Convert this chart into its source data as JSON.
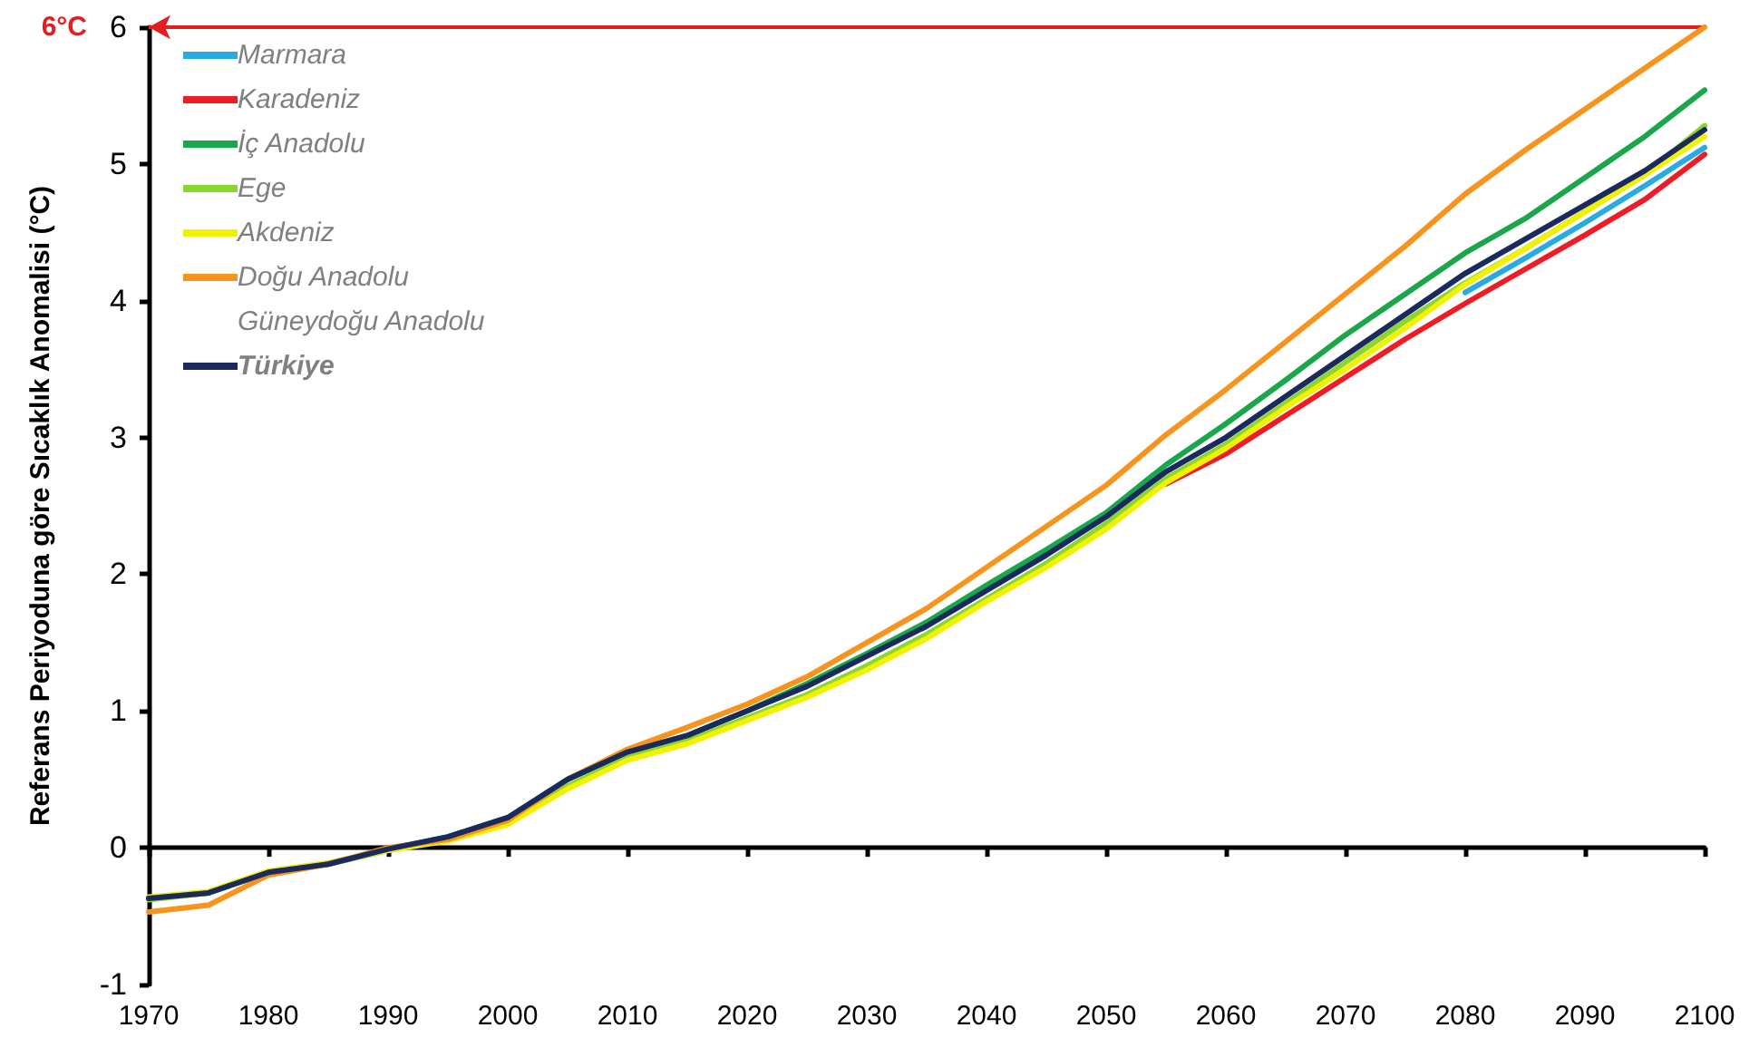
{
  "chart_data": {
    "type": "line",
    "ylabel": "Referans Periyoduna göre Sıcaklık Anomalisi (°C)",
    "x": [
      1970,
      1975,
      1980,
      1985,
      1990,
      1995,
      2000,
      2005,
      2010,
      2015,
      2020,
      2025,
      2030,
      2035,
      2040,
      2045,
      2050,
      2055,
      2060,
      2065,
      2070,
      2075,
      2080,
      2085,
      2090,
      2095,
      2100
    ],
    "xlim": [
      1970,
      2100
    ],
    "xticks": [
      1970,
      1980,
      1990,
      2000,
      2010,
      2020,
      2030,
      2040,
      2050,
      2060,
      2070,
      2080,
      2090,
      2100
    ],
    "ylim": [
      -1,
      6
    ],
    "yticks": [
      -1,
      0,
      1,
      2,
      3,
      4,
      5,
      6
    ],
    "legend": "top left",
    "ref_lines": [
      {
        "axis": "y",
        "value": 6,
        "label": "6°C",
        "color": "#e02020"
      }
    ],
    "series": [
      {
        "name": "Marmara",
        "color": "#29abe2",
        "values": [
          null,
          null,
          null,
          null,
          null,
          null,
          null,
          null,
          null,
          null,
          null,
          null,
          null,
          null,
          null,
          null,
          null,
          null,
          null,
          null,
          null,
          null,
          4.06,
          4.31,
          4.57,
          4.84,
          5.12
        ]
      },
      {
        "name": "Karadeniz",
        "color": "#ee1c25",
        "values": [
          null,
          null,
          null,
          null,
          null,
          null,
          null,
          null,
          null,
          null,
          null,
          null,
          null,
          null,
          null,
          null,
          null,
          2.66,
          2.88,
          3.16,
          3.44,
          3.72,
          3.98,
          4.23,
          4.48,
          4.74,
          5.07
        ]
      },
      {
        "name": "İç Anadolu",
        "color": "#1aa64a",
        "values": [
          -0.37,
          -0.33,
          -0.18,
          -0.12,
          -0.01,
          0.08,
          0.22,
          0.5,
          0.7,
          0.82,
          1.0,
          1.2,
          1.42,
          1.65,
          1.92,
          2.18,
          2.45,
          2.8,
          3.1,
          3.42,
          3.75,
          4.05,
          4.35,
          4.6,
          4.9,
          5.2,
          5.54
        ]
      },
      {
        "name": "Ege",
        "color": "#8cd631",
        "values": [
          -0.38,
          -0.33,
          -0.18,
          -0.12,
          -0.02,
          0.06,
          0.18,
          0.45,
          0.66,
          0.78,
          0.95,
          1.12,
          1.33,
          1.56,
          1.82,
          2.08,
          2.37,
          2.7,
          2.95,
          3.25,
          3.55,
          3.85,
          4.13,
          4.38,
          4.65,
          4.92,
          5.28
        ]
      },
      {
        "name": "Akdeniz",
        "color": "#f2f200",
        "values": [
          -0.36,
          -0.32,
          -0.17,
          -0.11,
          -0.02,
          0.05,
          0.17,
          0.43,
          0.64,
          0.76,
          0.93,
          1.1,
          1.3,
          1.53,
          1.8,
          2.05,
          2.33,
          2.67,
          2.92,
          3.22,
          3.5,
          3.8,
          4.12,
          4.38,
          4.65,
          4.92,
          5.2
        ]
      },
      {
        "name": "Doğu Anadolu",
        "color": "#f7941d",
        "values": [
          -0.47,
          -0.42,
          -0.2,
          -0.12,
          0.0,
          0.06,
          0.2,
          0.5,
          0.72,
          0.88,
          1.05,
          1.25,
          1.5,
          1.75,
          2.05,
          2.35,
          2.65,
          3.02,
          3.35,
          3.7,
          4.05,
          4.4,
          4.78,
          5.1,
          5.4,
          5.7,
          6.0
        ]
      },
      {
        "name": "Güneydoğu Anadolu",
        "values": [
          null,
          null,
          null,
          null,
          null,
          null,
          null,
          null,
          null,
          null,
          null,
          null,
          null,
          null,
          null,
          null,
          null,
          null,
          null,
          null,
          null,
          null,
          null,
          null,
          null,
          null,
          null
        ]
      },
      {
        "name": "Türkiye",
        "color": "#1b2a5c",
        "values": [
          -0.37,
          -0.33,
          -0.18,
          -0.12,
          -0.01,
          0.08,
          0.22,
          0.5,
          0.7,
          0.82,
          1.0,
          1.18,
          1.4,
          1.62,
          1.88,
          2.14,
          2.42,
          2.75,
          3.0,
          3.3,
          3.6,
          3.9,
          4.2,
          4.45,
          4.7,
          4.95,
          5.25
        ]
      }
    ]
  }
}
